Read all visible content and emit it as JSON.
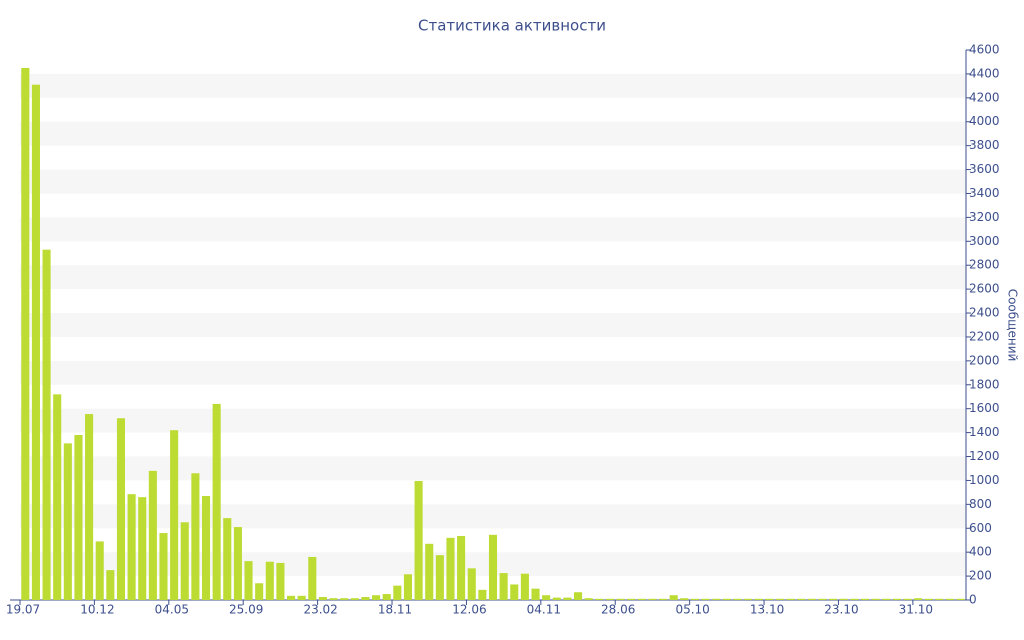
{
  "chart_data": {
    "type": "bar",
    "title": "Статистика активности",
    "y_label": "Сообщений",
    "categories": [
      "19.07",
      null,
      null,
      null,
      null,
      null,
      null,
      "10.12",
      null,
      null,
      null,
      null,
      null,
      null,
      "04.05",
      null,
      null,
      null,
      null,
      null,
      null,
      "25.09",
      null,
      null,
      null,
      null,
      null,
      null,
      "23.02",
      null,
      null,
      null,
      null,
      null,
      null,
      "18.11",
      null,
      null,
      null,
      null,
      null,
      null,
      "12.06",
      null,
      null,
      null,
      null,
      null,
      null,
      "04.11",
      null,
      null,
      null,
      null,
      null,
      null,
      "28.06",
      null,
      null,
      null,
      null,
      null,
      null,
      "05.10",
      null,
      null,
      null,
      null,
      null,
      null,
      "13.10",
      null,
      null,
      null,
      null,
      null,
      null,
      "23.10",
      null,
      null,
      null,
      null,
      null,
      null,
      "31.10",
      null,
      null,
      null,
      null
    ],
    "values": [
      4450,
      4310,
      2930,
      1720,
      1310,
      1380,
      1555,
      490,
      250,
      1520,
      885,
      860,
      1080,
      560,
      1420,
      650,
      1060,
      870,
      1640,
      685,
      610,
      325,
      140,
      320,
      310,
      35,
      35,
      360,
      25,
      15,
      15,
      15,
      25,
      40,
      50,
      120,
      215,
      995,
      470,
      375,
      520,
      535,
      265,
      85,
      545,
      225,
      130,
      220,
      95,
      40,
      20,
      20,
      65,
      15,
      10,
      10,
      10,
      10,
      10,
      10,
      10,
      40,
      15,
      10,
      10,
      10,
      10,
      10,
      10,
      10,
      10,
      10,
      10,
      10,
      10,
      10,
      10,
      10,
      10,
      10,
      10,
      10,
      10,
      10,
      15,
      10,
      10,
      10,
      10
    ],
    "color": "#bcdb33",
    "ylim": [
      0,
      4600
    ],
    "yticks": [
      0,
      200,
      400,
      600,
      800,
      1000,
      1200,
      1400,
      1600,
      1800,
      2000,
      2200,
      2400,
      2600,
      2800,
      3000,
      3200,
      3400,
      3600,
      3800,
      4000,
      4200,
      4400,
      4600
    ],
    "grid": "bands"
  }
}
